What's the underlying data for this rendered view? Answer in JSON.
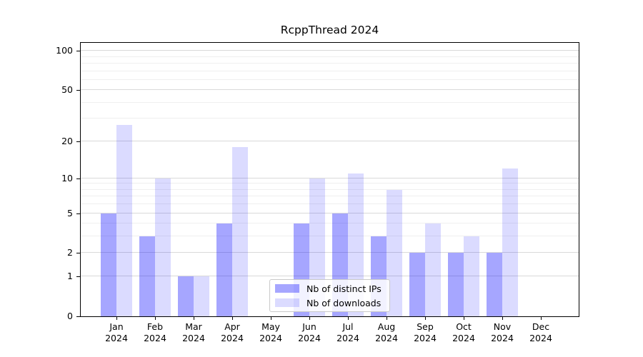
{
  "title": "RcppThread 2024",
  "legend": {
    "items": [
      {
        "label": "Nb of distinct IPs"
      },
      {
        "label": "Nb of downloads"
      }
    ]
  },
  "chart_data": {
    "type": "bar",
    "title": "RcppThread 2024",
    "scale": "log1p",
    "grid": true,
    "legend_position": "lower center",
    "categories": [
      "Jan",
      "Feb",
      "Mar",
      "Apr",
      "May",
      "Jun",
      "Jul",
      "Aug",
      "Sep",
      "Oct",
      "Nov",
      "Dec"
    ],
    "year_labels": [
      "2024",
      "2024",
      "2024",
      "2024",
      "2024",
      "2024",
      "2024",
      "2024",
      "2024",
      "2024",
      "2024",
      "2024"
    ],
    "series": [
      {
        "name": "Nb of distinct IPs",
        "color_hex": "#a6a6f7",
        "css_color": "rgba(0,0,255,0.35)",
        "values": [
          5,
          3,
          1,
          4,
          0,
          4,
          5,
          3,
          2,
          2,
          2,
          0
        ]
      },
      {
        "name": "Nb of downloads",
        "color_hex": "#dadaf9",
        "css_color": "rgba(0,0,255,0.14)",
        "values": [
          27,
          10,
          1,
          18,
          0,
          10,
          11,
          8,
          4,
          3,
          12,
          0
        ]
      }
    ],
    "xlabel": "",
    "ylabel": "",
    "ylim": [
      0,
      115
    ],
    "y_ticks": [
      0,
      1,
      2,
      5,
      10,
      20,
      50,
      100
    ],
    "y_tick_labels": [
      "0",
      "1",
      "2",
      "5",
      "10",
      "20",
      "50",
      "100"
    ],
    "y_minor_gridlines": [
      3,
      4,
      6,
      7,
      8,
      9,
      30,
      40,
      60,
      70,
      80,
      90
    ],
    "major_grid_color": "#d9d9d9",
    "minor_grid_color": "#efefef"
  }
}
